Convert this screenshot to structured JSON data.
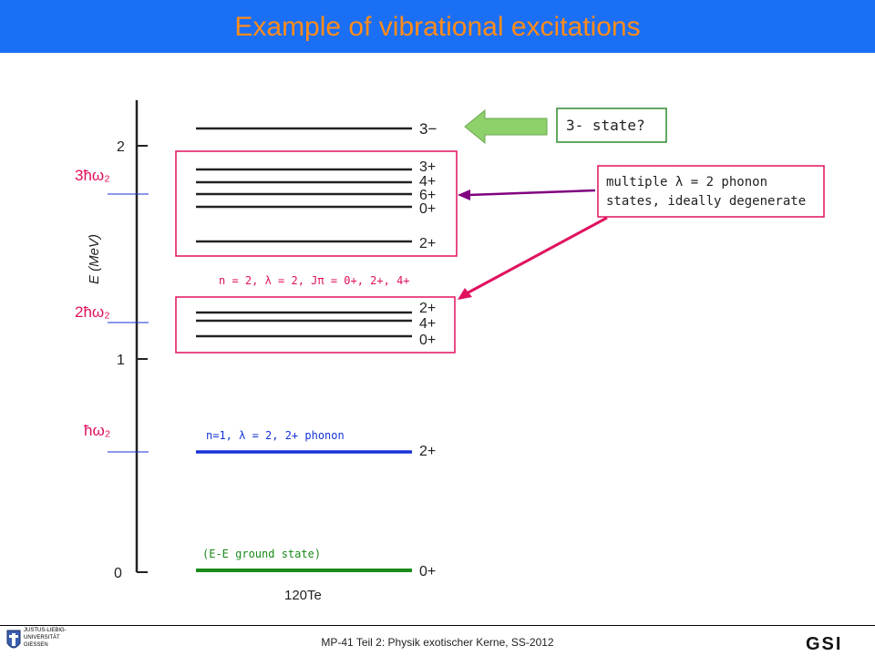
{
  "header": {
    "title": "Example of vibrational excitations",
    "bg_color": "#1a6ff5",
    "title_color": "#ff8c1a"
  },
  "axis": {
    "label": "E (MeV)",
    "ticks": [
      "2",
      "1",
      "0"
    ]
  },
  "energy_marks": {
    "three_phonon": "3ħω₂",
    "two_phonon": "2ħω₂",
    "one_phonon": "ħω₂"
  },
  "levels": {
    "three_minus": "3−",
    "triplet_group": [
      "3+",
      "4+",
      "6+",
      "0+",
      "2+"
    ],
    "doublet_group": [
      "2+",
      "4+",
      "0+"
    ],
    "one_phonon": "2+",
    "ground": "0+"
  },
  "annotations": {
    "n2": "n = 2, λ = 2, Jπ = 0+, 2+, 4+",
    "n1": "n=1, λ = 2, 2+ phonon",
    "ground": "(E-E ground state)",
    "nucleus": "120Te",
    "state_question": "3- state?",
    "multiphonon_line1": "multiple λ = 2 phonon",
    "multiphonon_line2": "states, ideally degenerate"
  },
  "footer": {
    "text": "MP-41 Teil 2: Physik exotischer Kerne, SS-2012",
    "uni_line1": "JUSTUS-LIEBIG-",
    "uni_line2": "UNIVERSITÄT",
    "uni_line3": "GIESSEN",
    "gsi": "GSI"
  },
  "colors": {
    "magenta": "#e0115f",
    "purple": "#800080",
    "blue": "#1533d6",
    "green": "#1a8a1a",
    "arrow_green": "#8ed16a",
    "box_green": "#2e8b2e"
  }
}
